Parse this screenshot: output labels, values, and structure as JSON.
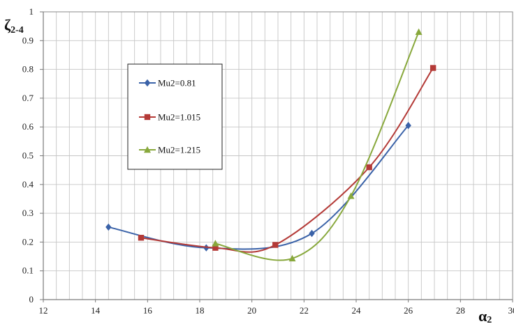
{
  "chart_data": {
    "type": "line",
    "title": "",
    "xlabel": "α",
    "xlabel_sub": "2",
    "ylabel": "ζ",
    "ylabel_sub": "2-4",
    "xlim": [
      12,
      30
    ],
    "ylim": [
      0,
      1
    ],
    "x_ticks": [
      "12",
      "14",
      "16",
      "18",
      "20",
      "22",
      "24",
      "26",
      "28",
      "30"
    ],
    "y_ticks": [
      "0",
      "0.1",
      "0.2",
      "0.3",
      "0.4",
      "0.5",
      "0.6",
      "0.7",
      "0.8",
      "0.9",
      "1"
    ],
    "grid": true,
    "legend": "upper-left inside plot",
    "series": [
      {
        "name": "Mu2=0.81",
        "color": "#3a62a8",
        "marker": "diamond",
        "points": [
          [
            14.5,
            0.252
          ],
          [
            18.25,
            0.18
          ],
          [
            22.3,
            0.23
          ],
          [
            26.0,
            0.605
          ]
        ]
      },
      {
        "name": "Mu2=1.015",
        "color": "#b43a37",
        "marker": "square",
        "points": [
          [
            15.75,
            0.215
          ],
          [
            18.6,
            0.18
          ],
          [
            20.9,
            0.19
          ],
          [
            24.5,
            0.46
          ],
          [
            26.95,
            0.805
          ]
        ]
      },
      {
        "name": "Mu2=1.215",
        "color": "#88a83c",
        "marker": "triangle",
        "points": [
          [
            18.6,
            0.195
          ],
          [
            21.55,
            0.143
          ],
          [
            23.8,
            0.36
          ],
          [
            26.4,
            0.93
          ]
        ]
      }
    ]
  }
}
